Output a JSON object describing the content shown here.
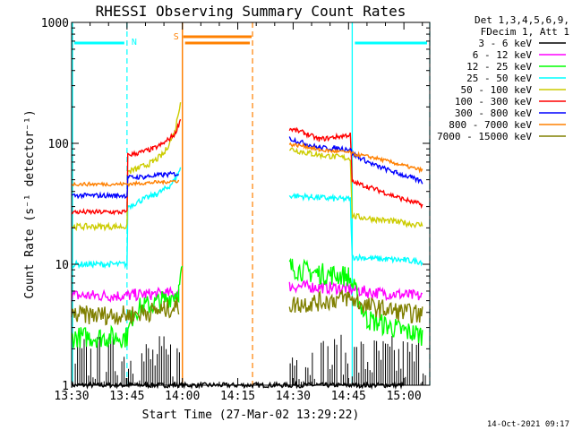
{
  "chart_data": {
    "type": "line",
    "title": "RHESSI Observing Summary Count Rates",
    "xlabel": "Start Time (27-Mar-02 13:29:22)",
    "ylabel": "Count Rate (s⁻¹ detector⁻¹)",
    "y_scale": "log",
    "ylim": [
      1,
      1000
    ],
    "xlim_minutes_after_1330": [
      0,
      97
    ],
    "x_ticks": [
      {
        "min": 0,
        "label": "13:30"
      },
      {
        "min": 15,
        "label": "13:45"
      },
      {
        "min": 30,
        "label": "14:00"
      },
      {
        "min": 45,
        "label": "14:15"
      },
      {
        "min": 60,
        "label": "14:30"
      },
      {
        "min": 75,
        "label": "14:45"
      },
      {
        "min": 90,
        "label": "15:00"
      }
    ],
    "y_ticks": [
      {
        "v": 1,
        "label": "1"
      },
      {
        "v": 10,
        "label": "10"
      },
      {
        "v": 100,
        "label": "100"
      },
      {
        "v": 1000,
        "label": "1000"
      }
    ],
    "legend": {
      "placement": "right",
      "header": [
        "Det 1,3,4,5,6,9,",
        "FDecim 1, Att 1"
      ]
    },
    "series": [
      {
        "name": "3 - 6 keV",
        "color": "#000000",
        "segments": [
          [
            [
              0,
              1.0
            ],
            [
              15,
              1.0
            ],
            [
              29,
              1.0
            ],
            [
              59,
              1.0
            ],
            [
              75,
              1.0
            ],
            [
              90,
              1.0
            ]
          ]
        ]
      },
      {
        "name": "6 - 12 keV",
        "color": "#ff00ff",
        "segments": [
          [
            [
              0,
              5.5
            ],
            [
              15,
              5.5
            ],
            [
              17,
              5.6
            ],
            [
              25,
              5.7
            ],
            [
              29,
              5.8
            ]
          ],
          [
            [
              59,
              6.6
            ],
            [
              65,
              6.5
            ],
            [
              75,
              6.3
            ],
            [
              80,
              5.9
            ],
            [
              90,
              5.6
            ],
            [
              95,
              5.4
            ]
          ]
        ]
      },
      {
        "name": "12 - 25 keV",
        "color": "#00ff00",
        "segments": [
          [
            [
              0,
              2.5
            ],
            [
              15,
              2.5
            ],
            [
              17,
              4.2
            ],
            [
              25,
              5.0
            ],
            [
              29,
              6.0
            ],
            [
              30,
              9.0
            ]
          ],
          [
            [
              59,
              9.5
            ],
            [
              65,
              8.5
            ],
            [
              75,
              8.0
            ],
            [
              80,
              3.5
            ],
            [
              90,
              2.8
            ],
            [
              95,
              2.6
            ]
          ]
        ]
      },
      {
        "name": "25 - 50 keV",
        "color": "#00ffff",
        "segments": [
          [
            [
              0,
              10.0
            ],
            [
              15,
              10.0
            ],
            [
              15.2,
              30
            ],
            [
              19,
              34
            ],
            [
              23,
              38
            ],
            [
              26,
              43
            ],
            [
              28,
              50
            ],
            [
              29.5,
              62
            ]
          ],
          [
            [
              59,
              37
            ],
            [
              65,
              36
            ],
            [
              70,
              35
            ],
            [
              75.5,
              34.5
            ],
            [
              76,
              11.5
            ],
            [
              85,
              11.0
            ],
            [
              90,
              10.8
            ],
            [
              95,
              10.5
            ]
          ]
        ]
      },
      {
        "name": "50 - 100 keV",
        "color": "#cccc00",
        "segments": [
          [
            [
              0,
              20.5
            ],
            [
              15,
              20.5
            ],
            [
              15.2,
              58
            ],
            [
              18,
              62
            ],
            [
              22,
              70
            ],
            [
              25,
              82
            ],
            [
              28,
              125
            ],
            [
              29.5,
              225
            ]
          ],
          [
            [
              59,
              90
            ],
            [
              65,
              82
            ],
            [
              70,
              78
            ],
            [
              75.5,
              75
            ],
            [
              76,
              25
            ],
            [
              85,
              23
            ],
            [
              90,
              22
            ],
            [
              95,
              21
            ]
          ]
        ]
      },
      {
        "name": "100 - 300 keV",
        "color": "#ff0000",
        "segments": [
          [
            [
              0,
              27
            ],
            [
              15,
              27
            ],
            [
              15.2,
              80
            ],
            [
              18,
              83
            ],
            [
              22,
              90
            ],
            [
              25,
              100
            ],
            [
              28,
              120
            ],
            [
              29.5,
              158
            ]
          ],
          [
            [
              59,
              132
            ],
            [
              63,
              122
            ],
            [
              67,
              108
            ],
            [
              71,
              112
            ],
            [
              75.5,
              118
            ],
            [
              76,
              48
            ],
            [
              80,
              44
            ],
            [
              84,
              40
            ],
            [
              88,
              36
            ],
            [
              92,
              33
            ],
            [
              95,
              31
            ]
          ]
        ]
      },
      {
        "name": "300 - 800 keV",
        "color": "#0000ff",
        "segments": [
          [
            [
              0,
              37
            ],
            [
              15,
              37
            ],
            [
              15.2,
              52
            ],
            [
              20,
              53
            ],
            [
              25,
              55
            ],
            [
              29,
              56
            ]
          ],
          [
            [
              59,
              110
            ],
            [
              63,
              100
            ],
            [
              67,
              92
            ],
            [
              71,
              91
            ],
            [
              75.5,
              90
            ],
            [
              76,
              82
            ],
            [
              82,
              66
            ],
            [
              88,
              57
            ],
            [
              92,
              52
            ],
            [
              95,
              48
            ]
          ]
        ]
      },
      {
        "name": "800 - 7000 keV",
        "color": "#ff8000",
        "segments": [
          [
            [
              0,
              46
            ],
            [
              15,
              46
            ],
            [
              20,
              47
            ],
            [
              25,
              48
            ],
            [
              29,
              49
            ]
          ],
          [
            [
              59,
              98
            ],
            [
              63,
              95
            ],
            [
              67,
              88
            ],
            [
              71,
              86
            ],
            [
              75.5,
              84
            ],
            [
              76,
              82
            ],
            [
              82,
              76
            ],
            [
              88,
              68
            ],
            [
              92,
              63
            ],
            [
              95,
              60
            ]
          ]
        ]
      },
      {
        "name": "7000 - 15000 keV",
        "color": "#808000",
        "segments": [
          [
            [
              0,
              3.8
            ],
            [
              15,
              3.8
            ],
            [
              20,
              4.0
            ],
            [
              25,
              4.2
            ],
            [
              29,
              4.5
            ]
          ],
          [
            [
              59,
              4.6
            ],
            [
              65,
              4.8
            ],
            [
              75,
              5.3
            ],
            [
              80,
              4.5
            ],
            [
              90,
              4.0
            ],
            [
              95,
              3.8
            ]
          ]
        ]
      }
    ],
    "annotations": [
      {
        "label": "N",
        "color": "#00ffff",
        "x_start": 0,
        "x_end": 15
      },
      {
        "label": "",
        "color": "#00ffff",
        "x_start": 76,
        "x_end": 97
      },
      {
        "label": "S",
        "color": "#ff8000",
        "x_start": 30,
        "x_end": 49
      },
      {
        "label": "",
        "color": "#ff8000",
        "x_start": 30,
        "x_end": 30
      }
    ]
  },
  "footer": {
    "timestamp": "14-Oct-2021 09:17"
  }
}
